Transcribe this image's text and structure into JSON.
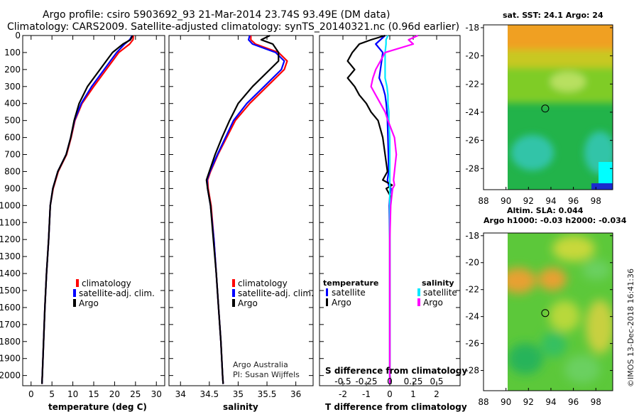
{
  "header": {
    "line1": "Argo profile: csiro 5903692_93 21-Mar-2014 23.74S 93.49E (DM data)",
    "line2": "Climatology: CARS2009. Satellite-adjusted climatology: synTS_20140321.nc (0.96d earlier)"
  },
  "colors": {
    "climatology": "#ff0000",
    "satellite": "#0000ff",
    "argo": "#000000",
    "sat_T": "#00e8ff",
    "argo_S": "#ff00ff"
  },
  "chart_data": [
    {
      "type": "line",
      "title": "",
      "xlabel": "temperature (deg C)",
      "ylabel": "",
      "xlim": [
        -2,
        32
      ],
      "ylim": [
        2060,
        0
      ],
      "xticks": [
        "0",
        "5",
        "10",
        "15",
        "20",
        "25",
        "30"
      ],
      "yticks": [
        "0",
        "100",
        "200",
        "300",
        "400",
        "500",
        "600",
        "700",
        "800",
        "900",
        "1000",
        "1100",
        "1200",
        "1300",
        "1400",
        "1500",
        "1600",
        "1700",
        "1800",
        "1900",
        "2000"
      ],
      "depth": [
        0,
        25,
        50,
        100,
        150,
        200,
        300,
        400,
        500,
        600,
        700,
        800,
        900,
        1000,
        1200,
        1400,
        1600,
        1800,
        2000,
        2050
      ],
      "legend": [
        "climatology",
        "satellite-adj. clim.",
        "Argo"
      ],
      "series": [
        {
          "name": "climatology",
          "values": [
            24.5,
            24.4,
            23.6,
            21.0,
            19.5,
            18.0,
            15.0,
            12.2,
            10.5,
            9.6,
            8.5,
            6.5,
            5.3,
            4.6,
            4.2,
            3.7,
            3.3,
            3.0,
            2.7,
            2.6
          ]
        },
        {
          "name": "satellite-adj. clim.",
          "values": [
            24.2,
            23.6,
            22.4,
            20.5,
            19.0,
            17.5,
            14.5,
            12.0,
            10.4,
            9.5,
            8.4,
            6.4,
            5.2,
            4.6,
            4.2,
            3.7,
            3.3,
            3.0,
            2.7,
            2.6
          ]
        },
        {
          "name": "Argo",
          "values": [
            24.3,
            23.8,
            22.0,
            19.5,
            18.0,
            16.5,
            13.5,
            11.5,
            10.3,
            9.5,
            8.4,
            6.4,
            5.2,
            4.6,
            4.2,
            3.7,
            3.3,
            3.0,
            2.7,
            2.6
          ]
        }
      ]
    },
    {
      "type": "line",
      "title": "",
      "xlabel": "salinity",
      "ylabel": "",
      "xlim": [
        33.8,
        36.3
      ],
      "ylim": [
        2060,
        0
      ],
      "xticks": [
        "34",
        "34.5",
        "35",
        "35.5",
        "36"
      ],
      "depth": [
        0,
        25,
        50,
        100,
        150,
        200,
        300,
        400,
        500,
        600,
        700,
        800,
        850,
        900,
        1000,
        1200,
        1400,
        1600,
        1800,
        2000,
        2050
      ],
      "legend": [
        "climatology",
        "satellite-adj. clim.",
        "Argo"
      ],
      "series": [
        {
          "name": "climatology",
          "values": [
            35.22,
            35.22,
            35.3,
            35.7,
            35.85,
            35.8,
            35.5,
            35.2,
            34.95,
            34.8,
            34.65,
            34.52,
            34.47,
            34.48,
            34.53,
            34.58,
            34.62,
            34.66,
            34.7,
            34.73,
            34.74
          ]
        },
        {
          "name": "satellite-adj. clim.",
          "values": [
            35.2,
            35.18,
            35.25,
            35.65,
            35.8,
            35.75,
            35.45,
            35.15,
            34.92,
            34.78,
            34.64,
            34.51,
            34.46,
            34.47,
            34.52,
            34.58,
            34.62,
            34.66,
            34.7,
            34.73,
            34.74
          ]
        },
        {
          "name": "Argo",
          "values": [
            35.55,
            35.4,
            35.6,
            35.7,
            35.7,
            35.55,
            35.25,
            35.0,
            34.85,
            34.72,
            34.6,
            34.5,
            34.45,
            34.47,
            34.52,
            34.57,
            34.62,
            34.66,
            34.7,
            34.73,
            34.74
          ]
        }
      ],
      "credit": [
        "Argo Australia",
        "PI: Susan Wijffels"
      ]
    },
    {
      "type": "line",
      "title": "S difference from climatology",
      "xlabel": "T difference from climatology",
      "xlim": [
        -3,
        3
      ],
      "ylim": [
        2060,
        0
      ],
      "xticks": [
        "-2",
        "-1",
        "0",
        "1",
        "2"
      ],
      "top_xticks": [
        "-0.5",
        "-0.25",
        "0",
        "0.25",
        "0.5"
      ],
      "depth": [
        0,
        25,
        50,
        100,
        150,
        200,
        250,
        300,
        350,
        400,
        450,
        500,
        600,
        700,
        800,
        850,
        880,
        900,
        950,
        1000,
        1200,
        1400,
        1600,
        1800,
        2000,
        2050
      ],
      "legend_temperature": {
        "heading": "temperature",
        "items": [
          "satellite",
          "Argo"
        ]
      },
      "legend_salinity": {
        "heading": "salinity",
        "items": [
          "satellite",
          "Argo"
        ]
      },
      "series": [
        {
          "name": "temperature satellite",
          "values": [
            -0.2,
            -0.4,
            -0.6,
            -0.3,
            -0.35,
            -0.4,
            -0.45,
            -0.3,
            -0.2,
            -0.15,
            -0.12,
            -0.1,
            -0.08,
            -0.06,
            -0.05,
            -0.1,
            -0.05,
            0.05,
            0.0,
            -0.02,
            0.0,
            0.0,
            0.0,
            0.0,
            0.0,
            0.0
          ]
        },
        {
          "name": "temperature Argo",
          "values": [
            -0.2,
            -0.8,
            -1.3,
            -1.6,
            -1.8,
            -1.5,
            -1.8,
            -1.5,
            -1.3,
            -1.0,
            -0.8,
            -0.5,
            -0.3,
            -0.2,
            -0.1,
            -0.3,
            0.1,
            -0.15,
            0.05,
            0.0,
            0.0,
            0.0,
            0.0,
            0.0,
            0.0,
            0.05
          ]
        },
        {
          "name": "salinity satellite",
          "values": [
            -0.02,
            -0.04,
            -0.04,
            -0.05,
            -0.05,
            -0.05,
            -0.05,
            -0.03,
            -0.02,
            -0.02,
            -0.01,
            -0.01,
            0.0,
            0.0,
            0.0,
            0.0,
            0.0,
            0.0,
            0.0,
            0.0,
            0.0,
            0.0,
            0.0,
            0.0,
            0.0,
            0.0
          ]
        },
        {
          "name": "salinity Argo",
          "values": [
            0.3,
            0.2,
            0.25,
            -0.05,
            -0.1,
            -0.15,
            -0.18,
            -0.2,
            -0.15,
            -0.1,
            -0.05,
            -0.02,
            0.05,
            0.07,
            0.05,
            0.04,
            0.05,
            0.03,
            0.02,
            0.01,
            0.0,
            0.0,
            0.0,
            0.0,
            0.0,
            0.0
          ]
        }
      ]
    },
    {
      "type": "heatmap",
      "title": "sat. SST: 24.1 Argo: 24",
      "xlim": [
        88,
        99.5
      ],
      "ylim": [
        -29.5,
        -17.8
      ],
      "xticks": [
        "88",
        "90",
        "92",
        "94",
        "96",
        "98"
      ],
      "yticks": [
        "-18",
        "-20",
        "-22",
        "-24",
        "-26",
        "-28"
      ],
      "marker": {
        "lon": 93.49,
        "lat": -23.74
      }
    },
    {
      "type": "heatmap",
      "title": "Altim. SLA: 0.044",
      "subtitle": "Argo h1000: -0.03 h2000: -0.034",
      "xlim": [
        88,
        99.5
      ],
      "ylim": [
        -29.5,
        -17.8
      ],
      "xticks": [
        "88",
        "90",
        "92",
        "94",
        "96",
        "98"
      ],
      "yticks": [
        "-18",
        "-20",
        "-22",
        "-24",
        "-26",
        "-28"
      ],
      "marker": {
        "lon": 93.49,
        "lat": -23.74
      }
    }
  ],
  "footer": {
    "timestamp": "©IMOS 13-Dec-2018 16:41:36"
  }
}
